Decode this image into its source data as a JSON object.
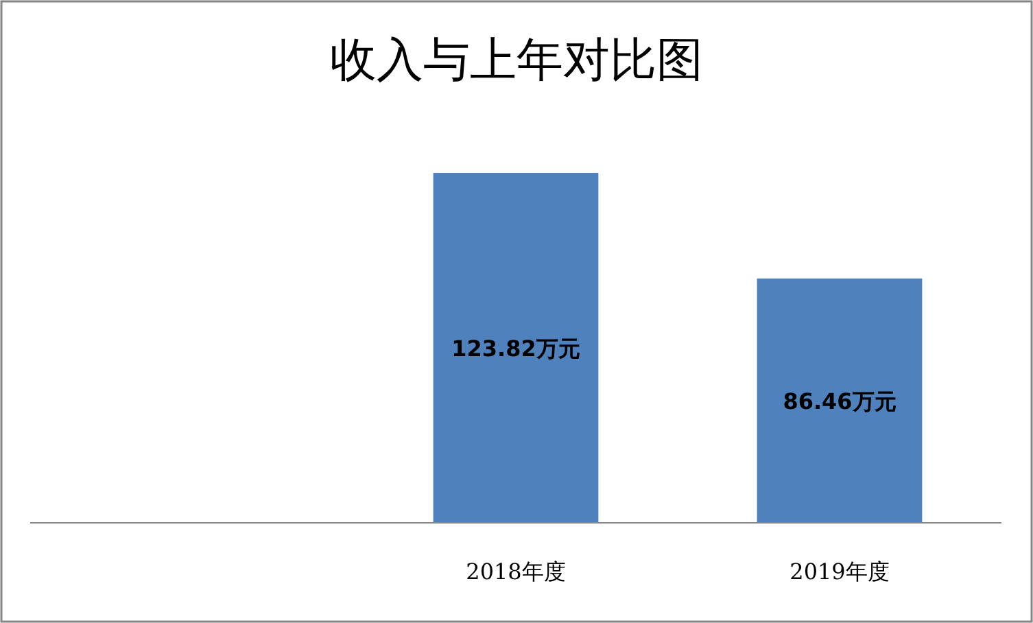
{
  "chart_data": {
    "type": "bar",
    "title": "收入与上年对比图",
    "categories": [
      null,
      "2018年度",
      "2019年度"
    ],
    "values": [
      null,
      123.82,
      86.46
    ],
    "value_labels": [
      null,
      "123.82万元",
      "86.46万元"
    ],
    "color": "#4f81bd"
  }
}
